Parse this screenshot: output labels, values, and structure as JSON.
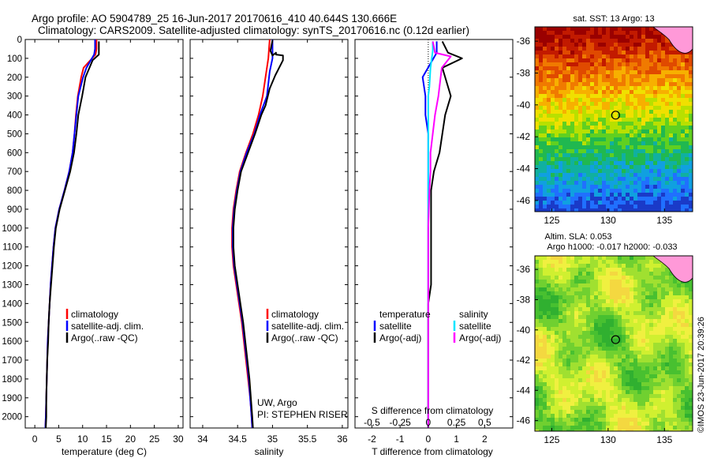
{
  "header": {
    "line1": "Argo profile: AO 5904789_25 16-Jun-2017 20170616_410 40.644S 130.666E",
    "line2": "Climatology: CARS2009. Satellite-adjusted climatology: synTS_20170616.nc (0.12d earlier)"
  },
  "colors": {
    "climatology": "#ff0000",
    "satellite": "#0000ff",
    "argo": "#000000",
    "salinity_satellite": "#00e5ff",
    "salinity_argo": "#ff00ff"
  },
  "chart_data": [
    {
      "type": "line",
      "xlabel": "temperature (deg C)",
      "ylabel": "",
      "xlim": [
        -2,
        31
      ],
      "ylim": [
        2060,
        0
      ],
      "xticks": [
        0,
        5,
        10,
        15,
        20,
        25,
        30
      ],
      "yticks": [
        0,
        100,
        200,
        300,
        400,
        500,
        600,
        700,
        800,
        900,
        1000,
        1100,
        1200,
        1300,
        1400,
        1500,
        1600,
        1700,
        1800,
        1900,
        2000
      ],
      "legend": [
        "climatology",
        "satellite-adj. clim.",
        "Argo(..raw -QC)"
      ],
      "series": [
        {
          "name": "climatology",
          "color": "#ff0000",
          "points": [
            [
              12.9,
              0
            ],
            [
              12.9,
              50
            ],
            [
              12.7,
              80
            ],
            [
              10.2,
              150
            ],
            [
              9.7,
              200
            ],
            [
              9.0,
              300
            ],
            [
              8.6,
              400
            ],
            [
              8.3,
              500
            ],
            [
              7.9,
              600
            ],
            [
              7.2,
              700
            ],
            [
              6.2,
              800
            ],
            [
              5.1,
              900
            ],
            [
              4.3,
              1000
            ],
            [
              3.9,
              1100
            ],
            [
              3.6,
              1200
            ],
            [
              3.3,
              1300
            ],
            [
              3.1,
              1400
            ],
            [
              2.9,
              1500
            ],
            [
              2.7,
              1600
            ],
            [
              2.6,
              1700
            ],
            [
              2.5,
              1800
            ],
            [
              2.4,
              1900
            ],
            [
              2.3,
              2000
            ],
            [
              2.2,
              2060
            ]
          ]
        },
        {
          "name": "satellite-adj. clim.",
          "color": "#0000ff",
          "points": [
            [
              12.6,
              0
            ],
            [
              12.6,
              50
            ],
            [
              12.4,
              80
            ],
            [
              10.8,
              150
            ],
            [
              10.1,
              200
            ],
            [
              9.1,
              300
            ],
            [
              8.7,
              400
            ],
            [
              8.3,
              500
            ],
            [
              7.9,
              600
            ],
            [
              7.2,
              700
            ],
            [
              6.2,
              800
            ],
            [
              5.1,
              900
            ],
            [
              4.3,
              1000
            ],
            [
              3.9,
              1100
            ],
            [
              3.6,
              1200
            ],
            [
              3.3,
              1300
            ],
            [
              3.1,
              1400
            ],
            [
              2.9,
              1500
            ],
            [
              2.7,
              1600
            ],
            [
              2.6,
              1700
            ],
            [
              2.5,
              1800
            ],
            [
              2.4,
              1900
            ],
            [
              2.3,
              2000
            ],
            [
              2.2,
              2060
            ]
          ]
        },
        {
          "name": "Argo(..raw -QC)",
          "color": "#000000",
          "points": [
            [
              13.4,
              10
            ],
            [
              13.4,
              80
            ],
            [
              12.1,
              110
            ],
            [
              10.6,
              200
            ],
            [
              9.9,
              300
            ],
            [
              9.1,
              400
            ],
            [
              8.7,
              500
            ],
            [
              8.2,
              600
            ],
            [
              7.4,
              700
            ],
            [
              6.3,
              800
            ],
            [
              5.2,
              900
            ],
            [
              4.4,
              1000
            ],
            [
              4.0,
              1100
            ],
            [
              3.7,
              1200
            ],
            [
              3.4,
              1300
            ],
            [
              3.1,
              1400
            ],
            [
              2.9,
              1500
            ],
            [
              2.8,
              1600
            ],
            [
              2.6,
              1700
            ],
            [
              2.5,
              1800
            ],
            [
              2.4,
              1900
            ],
            [
              2.4,
              2000
            ],
            [
              2.3,
              2060
            ]
          ]
        }
      ]
    },
    {
      "type": "line",
      "xlabel": "salinity",
      "ylabel": "",
      "xlim": [
        33.82,
        36.08
      ],
      "ylim": [
        2060,
        0
      ],
      "xticks": [
        34,
        34.5,
        35,
        35.5,
        36
      ],
      "legend": [
        "climatology",
        "satellite-adj. clim.",
        "Argo(..raw -QC)"
      ],
      "annotation1": "UW, Argo",
      "annotation2": "PI: STEPHEN RISER",
      "series": [
        {
          "name": "climatology",
          "color": "#ff0000",
          "points": [
            [
              34.96,
              0
            ],
            [
              34.95,
              50
            ],
            [
              34.94,
              100
            ],
            [
              34.9,
              200
            ],
            [
              34.86,
              300
            ],
            [
              34.8,
              400
            ],
            [
              34.72,
              500
            ],
            [
              34.62,
              600
            ],
            [
              34.53,
              700
            ],
            [
              34.48,
              800
            ],
            [
              34.44,
              900
            ],
            [
              34.42,
              1000
            ],
            [
              34.42,
              1100
            ],
            [
              34.44,
              1200
            ],
            [
              34.48,
              1300
            ],
            [
              34.52,
              1400
            ],
            [
              34.56,
              1500
            ],
            [
              34.59,
              1600
            ],
            [
              34.62,
              1700
            ],
            [
              34.65,
              1800
            ],
            [
              34.68,
              1900
            ],
            [
              34.7,
              2000
            ],
            [
              34.71,
              2060
            ]
          ]
        },
        {
          "name": "satellite-adj. clim.",
          "color": "#0000ff",
          "points": [
            [
              35.0,
              0
            ],
            [
              35.0,
              50
            ],
            [
              35.0,
              100
            ],
            [
              34.96,
              170
            ],
            [
              34.92,
              300
            ],
            [
              34.82,
              400
            ],
            [
              34.74,
              500
            ],
            [
              34.63,
              600
            ],
            [
              34.54,
              700
            ],
            [
              34.49,
              800
            ],
            [
              34.45,
              900
            ],
            [
              34.43,
              1000
            ],
            [
              34.43,
              1100
            ],
            [
              34.45,
              1200
            ],
            [
              34.49,
              1300
            ],
            [
              34.53,
              1400
            ],
            [
              34.57,
              1500
            ],
            [
              34.6,
              1600
            ],
            [
              34.63,
              1700
            ],
            [
              34.66,
              1800
            ],
            [
              34.68,
              1900
            ],
            [
              34.7,
              2000
            ],
            [
              34.71,
              2060
            ]
          ]
        },
        {
          "name": "Argo(..raw -QC)",
          "color": "#000000",
          "points": [
            [
              35.0,
              5
            ],
            [
              34.97,
              60
            ],
            [
              35.0,
              85
            ],
            [
              35.05,
              70
            ],
            [
              35.05,
              80
            ],
            [
              35.15,
              85
            ],
            [
              35.15,
              110
            ],
            [
              35.04,
              190
            ],
            [
              34.96,
              260
            ],
            [
              34.9,
              350
            ],
            [
              34.84,
              400
            ],
            [
              34.75,
              500
            ],
            [
              34.65,
              600
            ],
            [
              34.55,
              700
            ],
            [
              34.5,
              800
            ],
            [
              34.46,
              900
            ],
            [
              34.44,
              1000
            ],
            [
              34.44,
              1100
            ],
            [
              34.46,
              1200
            ],
            [
              34.5,
              1300
            ],
            [
              34.54,
              1400
            ],
            [
              34.58,
              1500
            ],
            [
              34.61,
              1600
            ],
            [
              34.64,
              1700
            ],
            [
              34.67,
              1800
            ],
            [
              34.69,
              1900
            ],
            [
              34.71,
              2000
            ],
            [
              34.72,
              2060
            ]
          ]
        }
      ]
    },
    {
      "type": "line",
      "xlabel": "T difference from climatology",
      "xlabel_top": "S difference from climatology",
      "ylabel": "",
      "xlim_T": [
        -2.6,
        3.0
      ],
      "xticks_T": [
        -2,
        -1,
        0,
        1,
        2
      ],
      "xlim_S": [
        -0.65,
        0.75
      ],
      "xticks_S": [
        -0.5,
        -0.25,
        0,
        0.25,
        0.5
      ],
      "ylim": [
        2060,
        0
      ],
      "legend_left_title": "temperature",
      "legend_right_title": "salinity",
      "legend_left": [
        "satellite",
        "Argo(-adj)"
      ],
      "legend_right": [
        "satellite",
        "Argo(-adj)"
      ],
      "series": [
        {
          "name": "satellite",
          "quantity": "temperature",
          "color": "#0000ff",
          "points": [
            [
              0.3,
              10
            ],
            [
              0.3,
              70
            ],
            [
              -0.2,
              200
            ],
            [
              -0.1,
              300
            ],
            [
              -0.1,
              400
            ],
            [
              0.0,
              500
            ],
            [
              0.0,
              600
            ],
            [
              0.0,
              700
            ],
            [
              0.0,
              800
            ],
            [
              0.0,
              900
            ],
            [
              0.0,
              1000
            ],
            [
              0.0,
              1100
            ],
            [
              0.0,
              1200
            ],
            [
              0.0,
              1300
            ],
            [
              0.0,
              1500
            ],
            [
              0.0,
              2060
            ]
          ]
        },
        {
          "name": "Argo(-adj)",
          "quantity": "temperature",
          "color": "#000000",
          "points": [
            [
              0.5,
              10
            ],
            [
              0.7,
              70
            ],
            [
              1.2,
              100
            ],
            [
              0.5,
              150
            ],
            [
              0.6,
              200
            ],
            [
              0.8,
              300
            ],
            [
              0.6,
              400
            ],
            [
              0.5,
              500
            ],
            [
              0.4,
              600
            ],
            [
              0.2,
              700
            ],
            [
              0.1,
              800
            ],
            [
              0.1,
              900
            ],
            [
              0.1,
              1000
            ],
            [
              0.1,
              1100
            ],
            [
              0.1,
              1200
            ],
            [
              0.1,
              1300
            ],
            [
              0.0,
              1400
            ],
            [
              0.0,
              1500
            ],
            [
              0.0,
              2060
            ]
          ]
        },
        {
          "name": "satellite",
          "quantity": "salinity",
          "color": "#00e5ff",
          "points": [
            [
              0.04,
              10
            ],
            [
              0.04,
              60
            ],
            [
              0.02,
              150
            ],
            [
              0.01,
              250
            ],
            [
              0.0,
              300
            ],
            [
              0.0,
              2060
            ]
          ]
        },
        {
          "name": "Argo(-adj)",
          "quantity": "salinity",
          "color": "#ff00ff",
          "points": [
            [
              0.04,
              10
            ],
            [
              0.06,
              70
            ],
            [
              0.2,
              90
            ],
            [
              0.12,
              150
            ],
            [
              0.09,
              300
            ],
            [
              0.06,
              400
            ],
            [
              0.04,
              500
            ],
            [
              0.02,
              600
            ],
            [
              0.02,
              700
            ],
            [
              0.01,
              800
            ],
            [
              0.0,
              1000
            ],
            [
              0.0,
              2060
            ]
          ]
        }
      ]
    }
  ],
  "maps": {
    "sst": {
      "title": "sat. SST: 13 Argo: 13",
      "xticks": [
        125,
        130,
        135
      ],
      "yticks": [
        -36,
        -38,
        -40,
        -42,
        -44,
        -46
      ],
      "xlim": [
        123.5,
        137.5
      ],
      "ylim": [
        -46.7,
        -35.1
      ],
      "marker": [
        130.666,
        -40.644
      ]
    },
    "sla": {
      "title1": "Altim. SLA: 0.053",
      "title2": "Argo h1000: -0.017 h2000: -0.033",
      "xticks": [
        125,
        130,
        135
      ],
      "yticks": [
        -36,
        -38,
        -40,
        -42,
        -44,
        -46
      ],
      "xlim": [
        123.5,
        137.5
      ],
      "ylim": [
        -46.7,
        -35.1
      ],
      "marker": [
        130.666,
        -40.644
      ]
    }
  },
  "credit": "©IMOS 23-Jun-2017 20:39:26"
}
